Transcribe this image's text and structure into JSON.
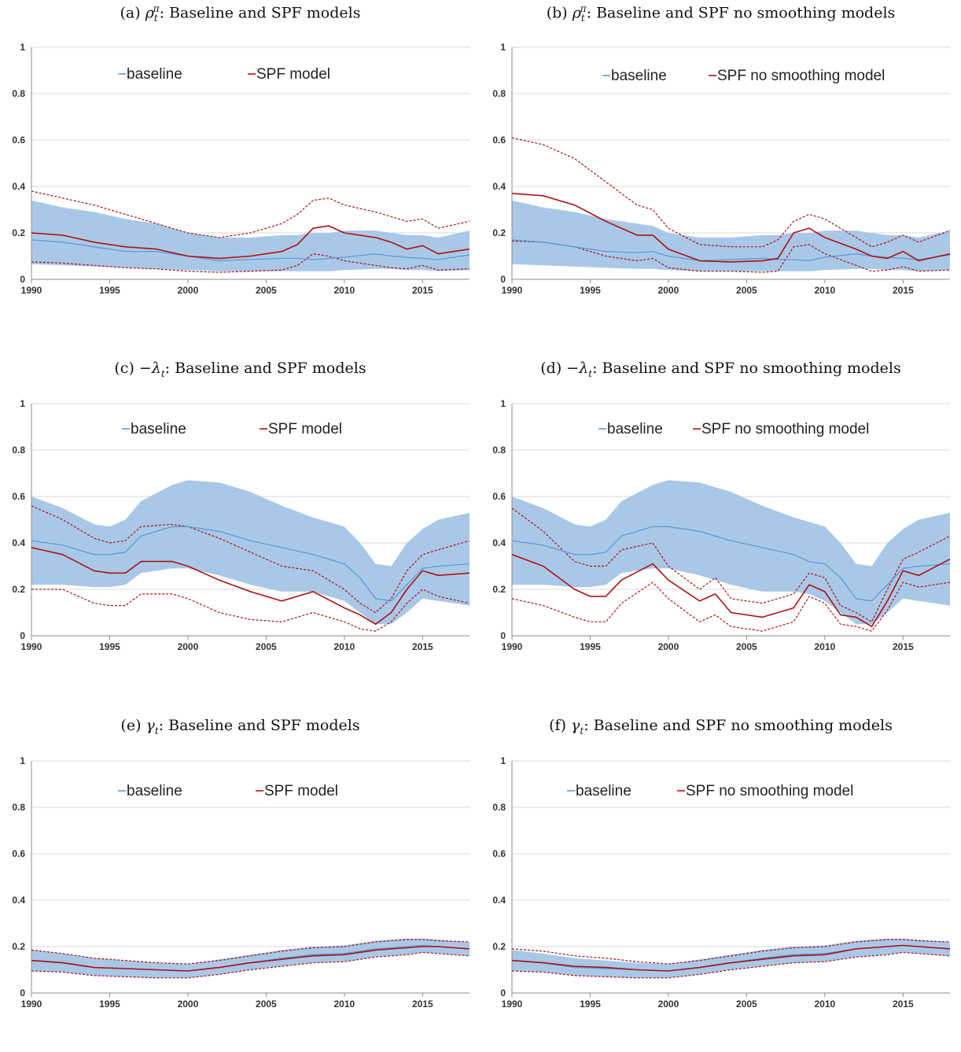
{
  "chart_data": [
    {
      "id": "a",
      "type": "line",
      "title_parts": [
        "(a) ",
        "ρ",
        "t",
        "π",
        ": Baseline and SPF models"
      ],
      "legend": [
        "baseline",
        "SPF model"
      ],
      "xlim": [
        1990,
        2018
      ],
      "ylim": [
        0,
        1
      ],
      "xticks": [
        "1990",
        "1995",
        "2000",
        "2005",
        "2010",
        "2015"
      ],
      "yticks": [
        "0",
        "0.2",
        "0.4",
        "0.6",
        "0.8",
        "1"
      ],
      "grid": "horizontal",
      "x": [
        1990,
        1992,
        1994,
        1996,
        1998,
        2000,
        2002,
        2004,
        2006,
        2007,
        2008,
        2009,
        2010,
        2012,
        2013,
        2014,
        2015,
        2016,
        2018
      ],
      "baseline": [
        0.17,
        0.16,
        0.14,
        0.12,
        0.12,
        0.1,
        0.08,
        0.085,
        0.09,
        0.09,
        0.085,
        0.09,
        0.095,
        0.11,
        0.1,
        0.095,
        0.09,
        0.085,
        0.105
      ],
      "band_upper": [
        0.34,
        0.31,
        0.29,
        0.26,
        0.24,
        0.2,
        0.18,
        0.18,
        0.19,
        0.19,
        0.2,
        0.2,
        0.21,
        0.21,
        0.2,
        0.19,
        0.19,
        0.18,
        0.21
      ],
      "band_lower": [
        0.065,
        0.06,
        0.055,
        0.05,
        0.045,
        0.04,
        0.035,
        0.035,
        0.035,
        0.035,
        0.035,
        0.035,
        0.04,
        0.045,
        0.045,
        0.04,
        0.04,
        0.035,
        0.04
      ],
      "spf": [
        0.2,
        0.19,
        0.16,
        0.14,
        0.13,
        0.1,
        0.09,
        0.1,
        0.12,
        0.15,
        0.22,
        0.23,
        0.2,
        0.18,
        0.16,
        0.13,
        0.145,
        0.11,
        0.13
      ],
      "spf_upper": [
        0.38,
        0.35,
        0.32,
        0.28,
        0.24,
        0.2,
        0.18,
        0.2,
        0.24,
        0.28,
        0.34,
        0.35,
        0.32,
        0.29,
        0.27,
        0.25,
        0.26,
        0.22,
        0.25
      ],
      "spf_lower": [
        0.075,
        0.07,
        0.06,
        0.05,
        0.045,
        0.035,
        0.03,
        0.035,
        0.04,
        0.06,
        0.11,
        0.1,
        0.08,
        0.06,
        0.05,
        0.045,
        0.06,
        0.04,
        0.045
      ]
    },
    {
      "id": "b",
      "type": "line",
      "title_parts": [
        "(b) ",
        "ρ",
        "t",
        "π",
        ": Baseline and SPF no smoothing models"
      ],
      "legend": [
        "baseline",
        "SPF no smoothing model"
      ],
      "xlim": [
        1990,
        2018
      ],
      "ylim": [
        0,
        1
      ],
      "xticks": [
        "1990",
        "1995",
        "2000",
        "2005",
        "2010",
        "2015"
      ],
      "yticks": [
        "0",
        "0.2",
        "0.4",
        "0.6",
        "0.8",
        "1"
      ],
      "grid": "horizontal",
      "x": [
        1990,
        1992,
        1994,
        1996,
        1998,
        1999,
        2000,
        2002,
        2004,
        2006,
        2007,
        2008,
        2009,
        2010,
        2012,
        2013,
        2014,
        2015,
        2016,
        2018
      ],
      "baseline": [
        0.17,
        0.16,
        0.14,
        0.12,
        0.115,
        0.12,
        0.1,
        0.08,
        0.085,
        0.09,
        0.085,
        0.085,
        0.08,
        0.095,
        0.11,
        0.1,
        0.095,
        0.09,
        0.085,
        0.105
      ],
      "band_upper": [
        0.34,
        0.31,
        0.29,
        0.26,
        0.24,
        0.23,
        0.2,
        0.18,
        0.18,
        0.19,
        0.19,
        0.2,
        0.2,
        0.21,
        0.21,
        0.2,
        0.19,
        0.19,
        0.18,
        0.21
      ],
      "band_lower": [
        0.065,
        0.06,
        0.055,
        0.05,
        0.045,
        0.045,
        0.04,
        0.035,
        0.035,
        0.035,
        0.035,
        0.035,
        0.035,
        0.04,
        0.045,
        0.045,
        0.04,
        0.04,
        0.035,
        0.04
      ],
      "spf": [
        0.37,
        0.36,
        0.32,
        0.25,
        0.19,
        0.19,
        0.13,
        0.08,
        0.075,
        0.08,
        0.09,
        0.2,
        0.22,
        0.18,
        0.13,
        0.1,
        0.09,
        0.12,
        0.08,
        0.11
      ],
      "spf_upper": [
        0.61,
        0.58,
        0.52,
        0.42,
        0.32,
        0.3,
        0.22,
        0.15,
        0.14,
        0.14,
        0.17,
        0.25,
        0.28,
        0.26,
        0.18,
        0.14,
        0.16,
        0.19,
        0.16,
        0.21
      ],
      "spf_lower": [
        0.165,
        0.16,
        0.14,
        0.1,
        0.08,
        0.09,
        0.05,
        0.035,
        0.035,
        0.03,
        0.035,
        0.14,
        0.15,
        0.11,
        0.06,
        0.035,
        0.04,
        0.055,
        0.035,
        0.04
      ]
    },
    {
      "id": "c",
      "type": "line",
      "title_parts": [
        "(c) ",
        "−λ",
        "t",
        "",
        ": Baseline and SPF models"
      ],
      "legend": [
        "baseline",
        "SPF model"
      ],
      "xlim": [
        1990,
        2018
      ],
      "ylim": [
        0,
        1
      ],
      "xticks": [
        "1990",
        "1995",
        "2000",
        "2005",
        "2010",
        "2015"
      ],
      "yticks": [
        "0",
        "0.2",
        "0.4",
        "0.6",
        "0.8",
        "1"
      ],
      "grid": "horizontal",
      "x": [
        1990,
        1992,
        1994,
        1995,
        1996,
        1997,
        1999,
        2000,
        2002,
        2004,
        2006,
        2008,
        2010,
        2011,
        2012,
        2013,
        2014,
        2015,
        2016,
        2018
      ],
      "baseline": [
        0.41,
        0.39,
        0.35,
        0.35,
        0.36,
        0.43,
        0.47,
        0.47,
        0.45,
        0.41,
        0.38,
        0.35,
        0.31,
        0.25,
        0.16,
        0.15,
        0.22,
        0.29,
        0.3,
        0.31
      ],
      "band_upper": [
        0.6,
        0.55,
        0.48,
        0.47,
        0.5,
        0.58,
        0.65,
        0.67,
        0.66,
        0.62,
        0.56,
        0.51,
        0.47,
        0.4,
        0.31,
        0.3,
        0.4,
        0.46,
        0.5,
        0.53
      ],
      "band_lower": [
        0.22,
        0.22,
        0.21,
        0.21,
        0.22,
        0.27,
        0.29,
        0.29,
        0.26,
        0.22,
        0.19,
        0.19,
        0.15,
        0.1,
        0.05,
        0.05,
        0.1,
        0.16,
        0.15,
        0.13
      ],
      "spf": [
        0.38,
        0.35,
        0.28,
        0.27,
        0.27,
        0.32,
        0.32,
        0.3,
        0.24,
        0.19,
        0.15,
        0.19,
        0.12,
        0.09,
        0.05,
        0.1,
        0.2,
        0.28,
        0.26,
        0.27
      ],
      "spf_upper": [
        0.56,
        0.5,
        0.42,
        0.4,
        0.41,
        0.47,
        0.48,
        0.47,
        0.42,
        0.36,
        0.3,
        0.28,
        0.2,
        0.14,
        0.1,
        0.16,
        0.28,
        0.35,
        0.37,
        0.41
      ],
      "spf_lower": [
        0.2,
        0.2,
        0.14,
        0.13,
        0.13,
        0.18,
        0.18,
        0.16,
        0.1,
        0.07,
        0.06,
        0.1,
        0.06,
        0.03,
        0.02,
        0.06,
        0.14,
        0.2,
        0.17,
        0.14
      ]
    },
    {
      "id": "d",
      "type": "line",
      "title_parts": [
        "(d) ",
        "−λ",
        "t",
        "",
        ": Baseline and SPF no smoothing models"
      ],
      "legend": [
        "baseline",
        "SPF no smoothing model"
      ],
      "xlim": [
        1990,
        2018
      ],
      "ylim": [
        0,
        1
      ],
      "xticks": [
        "1990",
        "1995",
        "2000",
        "2005",
        "2010",
        "2015"
      ],
      "yticks": [
        "0",
        "0.2",
        "0.4",
        "0.6",
        "0.8",
        "1"
      ],
      "grid": "horizontal",
      "x": [
        1990,
        1992,
        1994,
        1995,
        1996,
        1997,
        1999,
        2000,
        2002,
        2003,
        2004,
        2006,
        2008,
        2009,
        2010,
        2011,
        2012,
        2013,
        2014,
        2015,
        2016,
        2018
      ],
      "baseline": [
        0.41,
        0.39,
        0.35,
        0.35,
        0.36,
        0.43,
        0.47,
        0.47,
        0.45,
        0.43,
        0.41,
        0.38,
        0.35,
        0.32,
        0.31,
        0.25,
        0.16,
        0.15,
        0.22,
        0.29,
        0.3,
        0.31
      ],
      "band_upper": [
        0.6,
        0.55,
        0.48,
        0.47,
        0.5,
        0.58,
        0.65,
        0.67,
        0.66,
        0.64,
        0.62,
        0.56,
        0.51,
        0.49,
        0.47,
        0.4,
        0.31,
        0.3,
        0.4,
        0.46,
        0.5,
        0.53
      ],
      "band_lower": [
        0.22,
        0.22,
        0.21,
        0.21,
        0.22,
        0.27,
        0.29,
        0.29,
        0.26,
        0.24,
        0.22,
        0.19,
        0.19,
        0.18,
        0.15,
        0.1,
        0.05,
        0.05,
        0.1,
        0.16,
        0.15,
        0.13
      ],
      "spf": [
        0.35,
        0.3,
        0.2,
        0.17,
        0.17,
        0.24,
        0.31,
        0.24,
        0.15,
        0.18,
        0.1,
        0.08,
        0.12,
        0.22,
        0.19,
        0.09,
        0.08,
        0.04,
        0.15,
        0.28,
        0.26,
        0.33
      ],
      "spf_upper": [
        0.55,
        0.45,
        0.32,
        0.3,
        0.3,
        0.37,
        0.4,
        0.3,
        0.2,
        0.25,
        0.16,
        0.14,
        0.18,
        0.27,
        0.25,
        0.13,
        0.1,
        0.06,
        0.2,
        0.33,
        0.36,
        0.43
      ],
      "spf_lower": [
        0.16,
        0.13,
        0.08,
        0.06,
        0.06,
        0.14,
        0.23,
        0.16,
        0.06,
        0.09,
        0.04,
        0.02,
        0.06,
        0.17,
        0.14,
        0.05,
        0.04,
        0.02,
        0.11,
        0.23,
        0.21,
        0.23
      ]
    },
    {
      "id": "e",
      "type": "line",
      "title_parts": [
        "(e) ",
        "γ",
        "t",
        "",
        ": Baseline and SPF models"
      ],
      "legend": [
        "baseline",
        "SPF model"
      ],
      "xlim": [
        1990,
        2018
      ],
      "ylim": [
        0,
        1
      ],
      "xticks": [
        "1990",
        "1995",
        "2000",
        "2005",
        "2010",
        "2015"
      ],
      "yticks": [
        "0",
        "0.2",
        "0.4",
        "0.6",
        "0.8",
        "1"
      ],
      "grid": "horizontal",
      "x": [
        1990,
        1992,
        1994,
        1996,
        1998,
        2000,
        2002,
        2004,
        2006,
        2008,
        2010,
        2012,
        2014,
        2015,
        2016,
        2018
      ],
      "baseline": [
        0.14,
        0.13,
        0.11,
        0.105,
        0.1,
        0.095,
        0.11,
        0.13,
        0.15,
        0.165,
        0.17,
        0.19,
        0.2,
        0.205,
        0.2,
        0.19
      ],
      "band_upper": [
        0.185,
        0.17,
        0.15,
        0.14,
        0.13,
        0.125,
        0.145,
        0.165,
        0.185,
        0.2,
        0.205,
        0.225,
        0.235,
        0.235,
        0.23,
        0.22
      ],
      "band_lower": [
        0.095,
        0.09,
        0.075,
        0.07,
        0.065,
        0.065,
        0.08,
        0.1,
        0.115,
        0.13,
        0.135,
        0.155,
        0.165,
        0.175,
        0.17,
        0.16
      ],
      "spf": [
        0.14,
        0.13,
        0.11,
        0.105,
        0.1,
        0.095,
        0.11,
        0.13,
        0.145,
        0.16,
        0.165,
        0.185,
        0.195,
        0.2,
        0.2,
        0.19
      ],
      "spf_upper": [
        0.185,
        0.17,
        0.15,
        0.14,
        0.13,
        0.125,
        0.14,
        0.16,
        0.18,
        0.195,
        0.2,
        0.22,
        0.23,
        0.23,
        0.225,
        0.22
      ],
      "spf_lower": [
        0.095,
        0.09,
        0.075,
        0.07,
        0.065,
        0.065,
        0.08,
        0.1,
        0.115,
        0.13,
        0.135,
        0.155,
        0.165,
        0.175,
        0.17,
        0.16
      ]
    },
    {
      "id": "f",
      "type": "line",
      "title_parts": [
        "(f) ",
        "γ",
        "t",
        "",
        ": Baseline and SPF no smoothing models"
      ],
      "legend": [
        "baseline",
        "SPF no smoothing model"
      ],
      "xlim": [
        1990,
        2018
      ],
      "ylim": [
        0,
        1
      ],
      "xticks": [
        "1990",
        "1995",
        "2000",
        "2005",
        "2010",
        "2015"
      ],
      "yticks": [
        "0",
        "0.2",
        "0.4",
        "0.6",
        "0.8",
        "1"
      ],
      "grid": "horizontal",
      "x": [
        1990,
        1992,
        1994,
        1996,
        1998,
        2000,
        2002,
        2004,
        2006,
        2008,
        2010,
        2012,
        2014,
        2015,
        2016,
        2018
      ],
      "baseline": [
        0.14,
        0.13,
        0.11,
        0.105,
        0.1,
        0.095,
        0.11,
        0.13,
        0.15,
        0.165,
        0.17,
        0.19,
        0.2,
        0.205,
        0.2,
        0.19
      ],
      "band_upper": [
        0.185,
        0.17,
        0.15,
        0.14,
        0.13,
        0.125,
        0.145,
        0.165,
        0.185,
        0.2,
        0.205,
        0.225,
        0.235,
        0.235,
        0.23,
        0.22
      ],
      "band_lower": [
        0.095,
        0.09,
        0.075,
        0.07,
        0.065,
        0.065,
        0.08,
        0.1,
        0.115,
        0.13,
        0.135,
        0.155,
        0.165,
        0.175,
        0.17,
        0.16
      ],
      "spf": [
        0.14,
        0.13,
        0.115,
        0.11,
        0.1,
        0.095,
        0.11,
        0.13,
        0.145,
        0.16,
        0.165,
        0.19,
        0.2,
        0.205,
        0.2,
        0.19
      ],
      "spf_upper": [
        0.19,
        0.18,
        0.16,
        0.15,
        0.135,
        0.125,
        0.14,
        0.16,
        0.18,
        0.195,
        0.2,
        0.22,
        0.23,
        0.23,
        0.225,
        0.22
      ],
      "spf_lower": [
        0.095,
        0.09,
        0.075,
        0.07,
        0.065,
        0.065,
        0.08,
        0.1,
        0.115,
        0.13,
        0.135,
        0.155,
        0.165,
        0.175,
        0.17,
        0.16
      ]
    }
  ],
  "colors": {
    "band": "#a9c8e8",
    "baseline": "#5b9bd5",
    "spf": "#b01010",
    "grid": "#d9d9d9",
    "axis": "#8c8c8c"
  }
}
